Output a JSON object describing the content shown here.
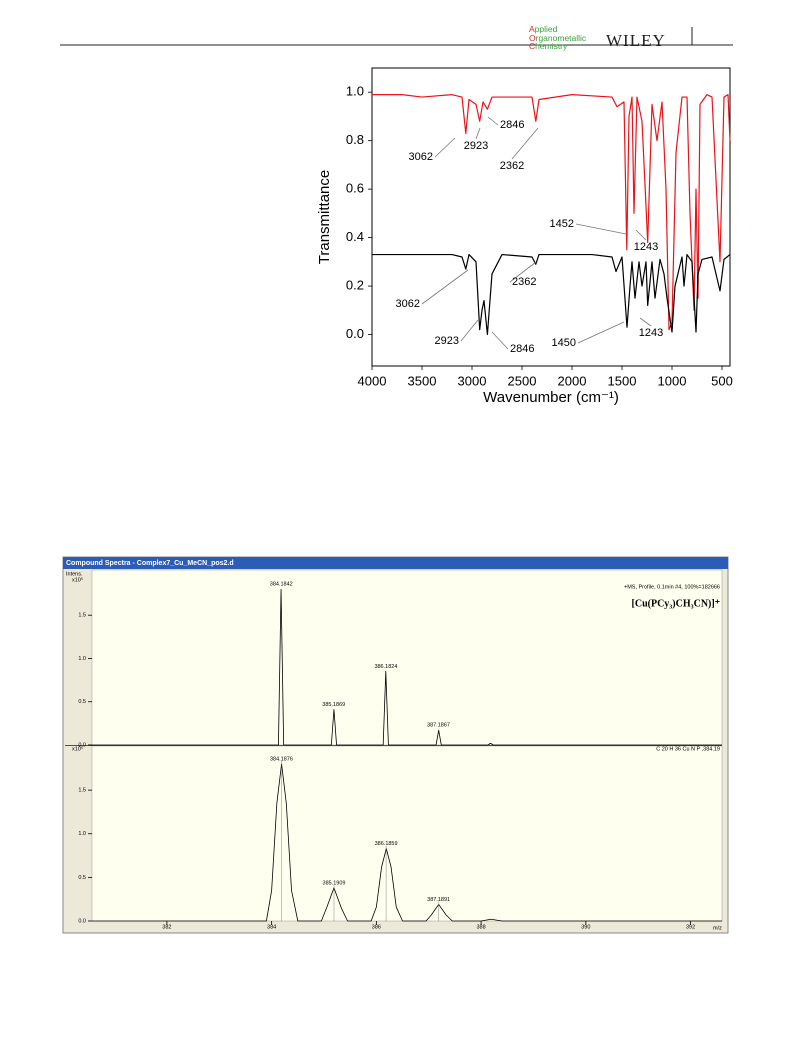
{
  "header": {
    "journal": [
      "Applied",
      "Organometallic",
      "Chemistry"
    ],
    "publisher": "WILEY"
  },
  "chart_data": [
    {
      "type": "line",
      "x_label": "Wavenumber (cm⁻¹)",
      "y_label": "Transmittance",
      "xlim": [
        4000,
        420
      ],
      "ylim": [
        -0.13,
        1.1
      ],
      "xticks": [
        4000,
        3500,
        3000,
        2500,
        2000,
        1500,
        1000,
        500
      ],
      "yticks": [
        {
          "value": 0,
          "label": "0.0"
        },
        {
          "value": 0.2,
          "label": "0.2"
        },
        {
          "value": 0.4,
          "label": "0.4"
        },
        {
          "value": 0.6,
          "label": "0.6"
        },
        {
          "value": 0.8,
          "label": "0.8"
        },
        {
          "value": 1,
          "label": "1.0"
        }
      ],
      "series": [
        {
          "color": "#e8141a",
          "x": [
            4000,
            3700,
            3500,
            3200,
            3100,
            3062,
            3030,
            2960,
            2923,
            2890,
            2846,
            2800,
            2400,
            2362,
            2330,
            2000,
            1600,
            1550,
            1480,
            1452,
            1430,
            1400,
            1380,
            1350,
            1300,
            1243,
            1200,
            1150,
            1100,
            1060,
            1030,
            1000,
            960,
            900,
            850,
            820,
            780,
            760,
            740,
            720,
            650,
            600,
            520,
            480,
            440,
            420
          ],
          "values": [
            0.99,
            0.99,
            0.98,
            0.99,
            0.98,
            0.83,
            0.97,
            0.95,
            0.88,
            0.96,
            0.93,
            0.98,
            0.98,
            0.88,
            0.97,
            0.99,
            0.98,
            0.94,
            0.96,
            0.35,
            0.9,
            0.98,
            0.5,
            0.98,
            0.88,
            0.38,
            0.95,
            0.8,
            0.96,
            0.6,
            0.02,
            0.05,
            0.75,
            0.98,
            0.98,
            0.5,
            0.1,
            0.6,
            0.15,
            0.95,
            0.99,
            0.98,
            0.3,
            0.98,
            0.99,
            0.8
          ]
        },
        {
          "color": "#000000",
          "x": [
            4000,
            3500,
            3200,
            3100,
            3062,
            3030,
            2960,
            2923,
            2900,
            2880,
            2846,
            2800,
            2700,
            2400,
            2362,
            2330,
            1800,
            1600,
            1560,
            1500,
            1450,
            1420,
            1400,
            1370,
            1330,
            1300,
            1260,
            1243,
            1200,
            1170,
            1120,
            1080,
            1050,
            1000,
            970,
            900,
            880,
            850,
            800,
            760,
            740,
            700,
            600,
            520,
            480,
            420
          ],
          "values": [
            0.33,
            0.33,
            0.33,
            0.32,
            0.27,
            0.33,
            0.3,
            0.02,
            0.1,
            0.14,
            0.0,
            0.25,
            0.33,
            0.32,
            0.29,
            0.33,
            0.33,
            0.32,
            0.26,
            0.32,
            0.03,
            0.2,
            0.3,
            0.15,
            0.3,
            0.2,
            0.3,
            0.12,
            0.3,
            0.15,
            0.31,
            0.25,
            0.15,
            0.01,
            0.2,
            0.32,
            0.2,
            0.33,
            0.3,
            0.01,
            0.25,
            0.31,
            0.32,
            0.18,
            0.31,
            0.33
          ]
        }
      ],
      "annotations": [
        {
          "text": "3062",
          "x": 3062
        },
        {
          "text": "2923",
          "x": 2923
        },
        {
          "text": "2846",
          "x": 2846
        },
        {
          "text": "2362",
          "x": 2362
        },
        {
          "text": "1452",
          "x": 1452
        },
        {
          "text": "1243",
          "x": 1243
        },
        {
          "text": "3062",
          "x": 3062
        },
        {
          "text": "2362",
          "x": 2362
        },
        {
          "text": "2923",
          "x": 2923
        },
        {
          "text": "2846",
          "x": 2846
        },
        {
          "text": "1450",
          "x": 1450
        },
        {
          "text": "1243",
          "x": 1243
        }
      ]
    },
    {
      "type": "line",
      "title": "Compound Spectra - Complex7_Cu_MeCN_pos2.d",
      "y_label": "Intens.",
      "y_unit": "x10⁵",
      "subtitle": "+MS, Profile, 0.1min #4, 100%=182666",
      "formula": "[Cu(PCy₃)CH₃CN)]⁺",
      "xlim": [
        380.57,
        392.6
      ],
      "ylim": [
        0,
        1.93
      ],
      "yticks": [
        {
          "value": 0,
          "label": "0.0"
        },
        0.5,
        {
          "value": 1,
          "label": "1.0"
        },
        1.5
      ],
      "series": [
        {
          "color": "#000000",
          "x": [
            380.5,
            384.13,
            384.18,
            384.23,
            385.14,
            385.19,
            385.24,
            386.13,
            386.18,
            386.23,
            387.14,
            387.19,
            387.24,
            388.13,
            388.18,
            388.23,
            392.6
          ],
          "values": [
            0,
            0,
            1.8,
            0,
            0,
            0.41,
            0,
            0,
            0.85,
            0,
            0,
            0.17,
            0,
            0,
            0.02,
            0,
            0
          ]
        }
      ],
      "annotations": [
        {
          "text": "384.1842",
          "x": 384.1842
        },
        {
          "text": "385.1869",
          "x": 385.1869
        },
        {
          "text": "386.1824",
          "x": 386.1824
        },
        {
          "text": "387.1867",
          "x": 387.1867
        }
      ]
    },
    {
      "type": "line",
      "y_unit": "x10⁵",
      "subtitle": "C 20 H 36 Cu N P ,384.19",
      "x_label": "m/z",
      "xlim": [
        380.57,
        392.6
      ],
      "ylim": [
        0,
        1.96
      ],
      "xticks": [
        382,
        384,
        386,
        388,
        390,
        392
      ],
      "yticks": [
        {
          "value": 0,
          "label": "0.0"
        },
        0.5,
        {
          "value": 1,
          "label": "1.0"
        },
        1.5
      ],
      "series": [
        {
          "color": "#000000",
          "x": [
            380.57,
            383.9,
            384.0,
            384.1,
            384.19,
            384.28,
            384.38,
            384.5,
            384.95,
            385.05,
            385.19,
            385.33,
            385.45,
            385.9,
            386.0,
            386.1,
            386.19,
            386.28,
            386.38,
            386.5,
            386.95,
            387.05,
            387.19,
            387.33,
            387.45,
            388.0,
            388.19,
            388.4,
            392.6
          ],
          "values": [
            0,
            0,
            0.35,
            1.35,
            1.8,
            1.35,
            0.35,
            0,
            0,
            0.15,
            0.38,
            0.15,
            0,
            0,
            0.16,
            0.62,
            0.83,
            0.62,
            0.16,
            0,
            0,
            0.07,
            0.19,
            0.07,
            0,
            0,
            0.02,
            0,
            0
          ]
        }
      ],
      "annotations": [
        {
          "text": "384.1876",
          "x": 384.1876
        },
        {
          "text": "385.1909",
          "x": 385.1909
        },
        {
          "text": "386.1859",
          "x": 386.1859
        },
        {
          "text": "387.1891",
          "x": 387.1891
        }
      ]
    }
  ]
}
